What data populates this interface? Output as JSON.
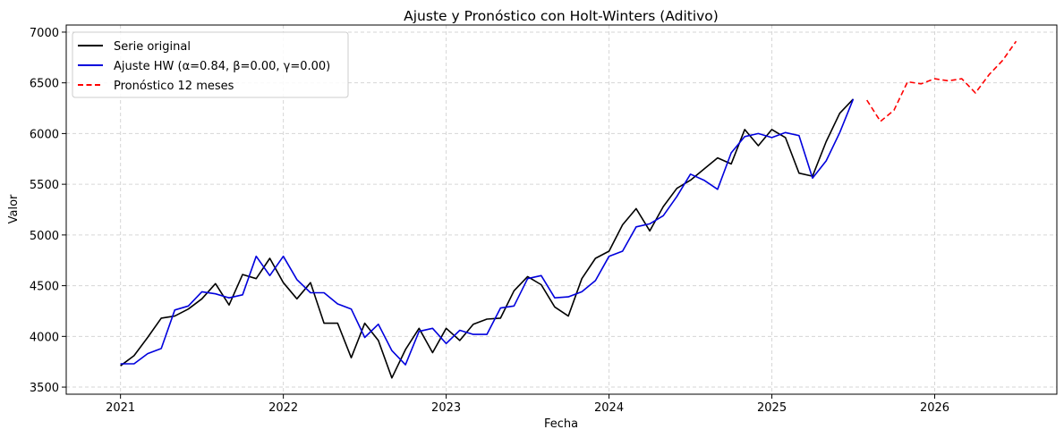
{
  "chart_data": {
    "type": "line",
    "title": "Ajuste y Pronóstico con Holt-Winters (Aditivo)",
    "xlabel": "Fecha",
    "ylabel": "Valor",
    "x_axis": "dates (YYYY-MM)",
    "xlim": [
      "2020-09",
      "2026-10"
    ],
    "ylim": [
      3430,
      7070
    ],
    "x_ticks": [
      "2021",
      "2022",
      "2023",
      "2024",
      "2025",
      "2026"
    ],
    "y_ticks": [
      3500,
      4000,
      4500,
      5000,
      5500,
      6000,
      6500,
      7000
    ],
    "grid": true,
    "legend_position": "top-left",
    "series": [
      {
        "name": "Serie original",
        "color": "#000000",
        "style": "solid",
        "x": [
          "2021-01",
          "2021-02",
          "2021-03",
          "2021-04",
          "2021-05",
          "2021-06",
          "2021-07",
          "2021-08",
          "2021-09",
          "2021-10",
          "2021-11",
          "2021-12",
          "2022-01",
          "2022-02",
          "2022-03",
          "2022-04",
          "2022-05",
          "2022-06",
          "2022-07",
          "2022-08",
          "2022-09",
          "2022-10",
          "2022-11",
          "2022-12",
          "2023-01",
          "2023-02",
          "2023-03",
          "2023-04",
          "2023-05",
          "2023-06",
          "2023-07",
          "2023-08",
          "2023-09",
          "2023-10",
          "2023-11",
          "2023-12",
          "2024-01",
          "2024-02",
          "2024-03",
          "2024-04",
          "2024-05",
          "2024-06",
          "2024-07",
          "2024-08",
          "2024-09",
          "2024-10",
          "2024-11",
          "2024-12",
          "2025-01",
          "2025-02",
          "2025-03",
          "2025-04",
          "2025-05",
          "2025-06",
          "2025-07"
        ],
        "y": [
          3710,
          3810,
          3990,
          4180,
          4200,
          4270,
          4370,
          4520,
          4310,
          4610,
          4570,
          4770,
          4530,
          4370,
          4530,
          4130,
          4130,
          3790,
          4130,
          3960,
          3590,
          3870,
          4080,
          3840,
          4080,
          3960,
          4120,
          4170,
          4180,
          4450,
          4590,
          4510,
          4290,
          4200,
          4570,
          4770,
          4840,
          5100,
          5260,
          5040,
          5280,
          5460,
          5540,
          5650,
          5760,
          5700,
          6040,
          5880,
          6040,
          5960,
          5610,
          5580,
          5920,
          6200,
          6340
        ]
      },
      {
        "name": "Ajuste HW (α=0.84, β=0.00, γ=0.00)",
        "color": "#0000dd",
        "style": "solid",
        "x": [
          "2021-01",
          "2021-02",
          "2021-03",
          "2021-04",
          "2021-05",
          "2021-06",
          "2021-07",
          "2021-08",
          "2021-09",
          "2021-10",
          "2021-11",
          "2021-12",
          "2022-01",
          "2022-02",
          "2022-03",
          "2022-04",
          "2022-05",
          "2022-06",
          "2022-07",
          "2022-08",
          "2022-09",
          "2022-10",
          "2022-11",
          "2022-12",
          "2023-01",
          "2023-02",
          "2023-03",
          "2023-04",
          "2023-05",
          "2023-06",
          "2023-07",
          "2023-08",
          "2023-09",
          "2023-10",
          "2023-11",
          "2023-12",
          "2024-01",
          "2024-02",
          "2024-03",
          "2024-04",
          "2024-05",
          "2024-06",
          "2024-07",
          "2024-08",
          "2024-09",
          "2024-10",
          "2024-11",
          "2024-12",
          "2025-01",
          "2025-02",
          "2025-03",
          "2025-04",
          "2025-05",
          "2025-06",
          "2025-07"
        ],
        "y": [
          3730,
          3730,
          3830,
          3880,
          4260,
          4300,
          4440,
          4420,
          4380,
          4410,
          4790,
          4600,
          4790,
          4560,
          4430,
          4430,
          4320,
          4270,
          3990,
          4120,
          3860,
          3720,
          4050,
          4080,
          3930,
          4060,
          4020,
          4020,
          4280,
          4300,
          4570,
          4600,
          4380,
          4390,
          4440,
          4550,
          4790,
          4840,
          5080,
          5110,
          5190,
          5380,
          5600,
          5540,
          5450,
          5810,
          5970,
          6000,
          5960,
          6010,
          5980,
          5560,
          5730,
          6010,
          6340
        ]
      },
      {
        "name": "Pronóstico 12 meses",
        "color": "#ff0000",
        "style": "dashed",
        "x": [
          "2025-08",
          "2025-09",
          "2025-10",
          "2025-11",
          "2025-12",
          "2026-01",
          "2026-02",
          "2026-03",
          "2026-04",
          "2026-05",
          "2026-06",
          "2026-07"
        ],
        "y": [
          6330,
          6120,
          6230,
          6510,
          6490,
          6540,
          6520,
          6540,
          6400,
          6580,
          6720,
          6910
        ]
      }
    ]
  }
}
